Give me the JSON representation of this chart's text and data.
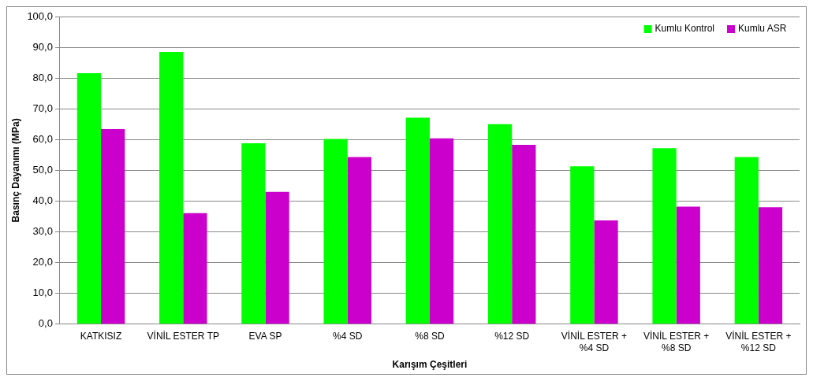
{
  "chart_data": {
    "type": "bar",
    "xlabel": "Karışım Çeşitleri",
    "ylabel": "Basınç Dayanımı (MPa)",
    "categories": [
      "KATKISIZ",
      "VİNİL ESTER TP",
      "EVA SP",
      "%4 SD",
      "%8 SD",
      "%12 SD",
      "VİNİL ESTER +\n%4 SD",
      "VİNİL ESTER +\n%8 SD",
      "VİNİL ESTER +\n%12 SD"
    ],
    "series": [
      {
        "name": "Kumlu Kontrol",
        "color": "#00ff00",
        "values": [
          81.6,
          88.5,
          58.8,
          60.2,
          67.1,
          65.0,
          51.3,
          57.2,
          54.3
        ]
      },
      {
        "name": "Kumlu ASR",
        "color": "#cc00cc",
        "values": [
          63.4,
          36.1,
          43.0,
          54.3,
          60.4,
          58.3,
          33.7,
          38.2,
          38.0
        ]
      }
    ],
    "ylim": [
      0,
      100
    ],
    "yticks": [
      {
        "value": 0,
        "label": "0,0"
      },
      {
        "value": 10,
        "label": "10,0"
      },
      {
        "value": 20,
        "label": "20,0"
      },
      {
        "value": 30,
        "label": "30,0"
      },
      {
        "value": 40,
        "label": "40,0"
      },
      {
        "value": 50,
        "label": "50,0"
      },
      {
        "value": 60,
        "label": "60,0"
      },
      {
        "value": 70,
        "label": "70,0"
      },
      {
        "value": 80,
        "label": "80,0"
      },
      {
        "value": 90,
        "label": "90,0"
      },
      {
        "value": 100,
        "label": "100,0"
      }
    ],
    "grid": "y",
    "legend": "top right"
  }
}
